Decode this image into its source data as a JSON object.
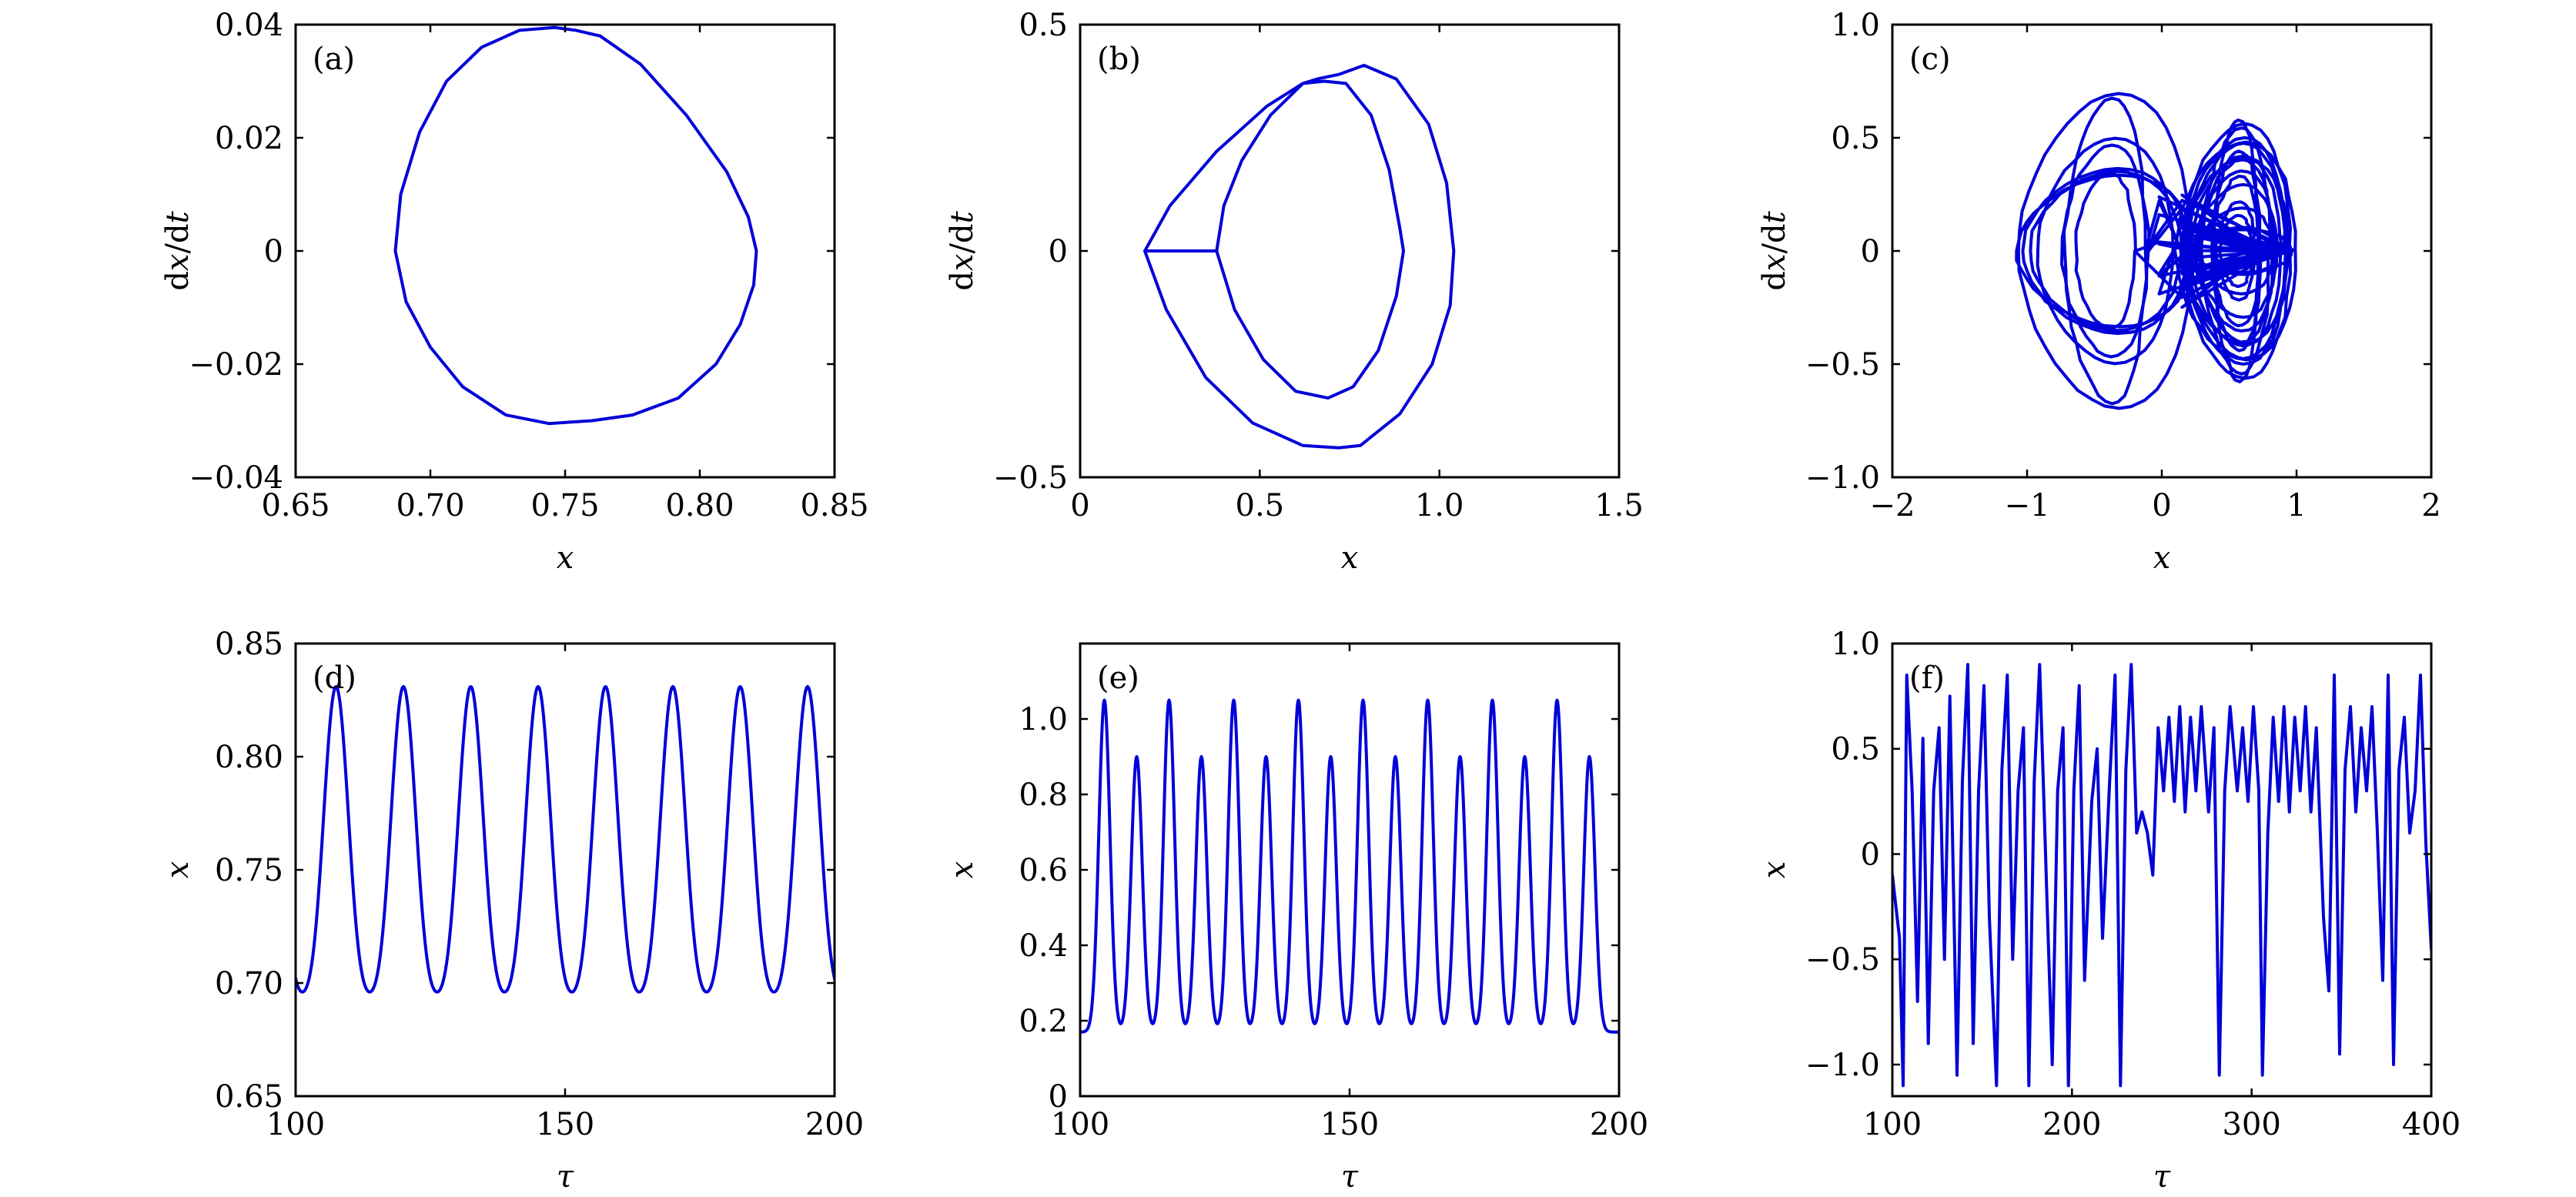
{
  "colors": {
    "series": "#0000d8",
    "axis": "#000000",
    "background": "#ffffff"
  },
  "chart_data": [
    {
      "panel_label": "(a)",
      "type": "line",
      "xlabel": "x",
      "ylabel": "dx/dt",
      "xlim": [
        0.65,
        0.85
      ],
      "ylim": [
        -0.04,
        0.04
      ],
      "xticks": [
        "0.65",
        "0.70",
        "0.75",
        "0.80",
        "0.85"
      ],
      "yticks": [
        "0.04",
        "0.02",
        "0",
        "−0.02",
        "−0.04"
      ],
      "x": [
        0.687,
        0.689,
        0.696,
        0.706,
        0.719,
        0.733,
        0.746,
        0.754,
        0.763,
        0.778,
        0.795,
        0.81,
        0.818,
        0.821,
        0.82,
        0.815,
        0.806,
        0.792,
        0.775,
        0.76,
        0.744,
        0.728,
        0.712,
        0.7,
        0.691,
        0.687
      ],
      "y": [
        0.0,
        0.01,
        0.021,
        0.03,
        0.036,
        0.039,
        0.0395,
        0.039,
        0.038,
        0.033,
        0.024,
        0.014,
        0.006,
        0.0,
        -0.006,
        -0.013,
        -0.02,
        -0.026,
        -0.029,
        -0.03,
        -0.0305,
        -0.029,
        -0.024,
        -0.017,
        -0.009,
        0.0
      ]
    },
    {
      "panel_label": "(b)",
      "type": "line",
      "xlabel": "x",
      "ylabel": "dx/dt",
      "xlim": [
        0,
        1.5
      ],
      "ylim": [
        -0.5,
        0.5
      ],
      "xticks": [
        "0",
        "0.5",
        "1.0",
        "1.5"
      ],
      "yticks": [
        "0.5",
        "0",
        "−0.5"
      ],
      "x": [
        0.18,
        0.25,
        0.38,
        0.52,
        0.62,
        0.66,
        0.72,
        0.79,
        0.88,
        0.97,
        1.02,
        1.04,
        1.03,
        0.98,
        0.89,
        0.78,
        0.72,
        0.62,
        0.48,
        0.35,
        0.24,
        0.18,
        0.38,
        0.4,
        0.45,
        0.53,
        0.62,
        0.68,
        0.74,
        0.81,
        0.86,
        0.89,
        0.9,
        0.88,
        0.83,
        0.76,
        0.69,
        0.6,
        0.51,
        0.43,
        0.38
      ],
      "y": [
        0.0,
        0.1,
        0.22,
        0.32,
        0.37,
        0.38,
        0.39,
        0.41,
        0.38,
        0.28,
        0.15,
        0.0,
        -0.12,
        -0.25,
        -0.36,
        -0.43,
        -0.435,
        -0.43,
        -0.38,
        -0.28,
        -0.13,
        0.0,
        0.0,
        0.1,
        0.2,
        0.3,
        0.37,
        0.375,
        0.37,
        0.3,
        0.18,
        0.05,
        0.0,
        -0.1,
        -0.22,
        -0.3,
        -0.325,
        -0.31,
        -0.24,
        -0.13,
        0.0
      ]
    },
    {
      "panel_label": "(c)",
      "type": "line",
      "xlabel": "x",
      "ylabel": "dx/dt",
      "xlim": [
        -2,
        2
      ],
      "ylim": [
        -1.0,
        1.0
      ],
      "xticks": [
        "−2",
        "−1",
        "0",
        "1",
        "2"
      ],
      "yticks": [
        "1.0",
        "0.5",
        "0",
        "−0.5",
        "−1.0"
      ]
    },
    {
      "panel_label": "(d)",
      "type": "line",
      "xlabel": "τ",
      "ylabel": "x",
      "xlim": [
        100,
        200
      ],
      "ylim": [
        0.65,
        0.85
      ],
      "xticks": [
        "100",
        "150",
        "200"
      ],
      "yticks": [
        "0.85",
        "0.80",
        "0.75",
        "0.70",
        "0.65"
      ],
      "period": 12.5,
      "peak_times": [
        107.5,
        120,
        132.5,
        145,
        157.5,
        170,
        182.5,
        195
      ],
      "peak_value": 0.821,
      "trough_value": 0.686
    },
    {
      "panel_label": "(e)",
      "type": "line",
      "xlabel": "τ",
      "ylabel": "x",
      "xlim": [
        100,
        200
      ],
      "ylim": [
        0,
        1.2
      ],
      "xticks": [
        "100",
        "150",
        "200"
      ],
      "yticks": [
        "1.0",
        "0.8",
        "0.6",
        "0.4",
        "0.2",
        "0"
      ],
      "high_peak_times": [
        104.5,
        116.5,
        128.5,
        140.5,
        152.5,
        164.5,
        176.5,
        188.5
      ],
      "low_peak_times": [
        110.5,
        122.5,
        134.5,
        146.5,
        158.5,
        170.5,
        182.5,
        194.5
      ],
      "high_peak_value": 1.05,
      "low_peak_value": 0.9,
      "trough_value": 0.17
    },
    {
      "panel_label": "(f)",
      "type": "line",
      "xlabel": "τ",
      "ylabel": "x",
      "xlim": [
        100,
        400
      ],
      "ylim": [
        -1.15,
        1.0
      ],
      "xticks": [
        "100",
        "200",
        "300",
        "400"
      ],
      "yticks": [
        "1.0",
        "0.5",
        "0",
        "−0.5",
        "−1.0"
      ],
      "t": [
        100,
        104,
        106,
        108,
        111,
        114,
        117,
        120,
        123,
        126,
        129,
        132,
        136,
        139,
        142,
        145,
        148,
        151,
        154,
        158,
        161,
        164,
        167,
        170,
        173,
        176,
        179,
        182,
        186,
        189,
        192,
        195,
        198,
        201,
        204,
        207,
        211,
        214,
        217,
        221,
        224,
        227,
        230,
        233,
        236,
        239,
        242,
        245,
        248,
        251,
        254,
        257,
        260,
        263,
        266,
        269,
        272,
        276,
        279,
        282,
        285,
        288,
        292,
        295,
        298,
        301,
        304,
        306,
        309,
        312,
        315,
        318,
        321,
        324,
        327,
        330,
        333,
        336,
        340,
        343,
        346,
        349,
        352,
        355,
        358,
        361,
        364,
        367,
        370,
        373,
        376,
        379,
        382,
        385,
        388,
        391,
        394,
        397,
        400
      ],
      "x": [
        -0.1,
        -0.4,
        -1.1,
        0.85,
        0.3,
        -0.7,
        0.55,
        -0.9,
        0.3,
        0.6,
        -0.5,
        0.75,
        -1.05,
        0.35,
        0.9,
        -0.9,
        0.3,
        0.8,
        -0.3,
        -1.1,
        0.4,
        0.85,
        -0.5,
        0.3,
        0.6,
        -1.1,
        0.35,
        0.9,
        -0.2,
        -1.0,
        0.3,
        0.6,
        -1.1,
        0.3,
        0.8,
        -0.6,
        0.25,
        0.5,
        -0.4,
        0.35,
        0.85,
        -1.1,
        0.4,
        0.9,
        0.1,
        0.2,
        0.1,
        -0.1,
        0.6,
        0.3,
        0.65,
        0.25,
        0.7,
        0.2,
        0.65,
        0.3,
        0.7,
        0.2,
        0.6,
        -1.05,
        0.3,
        0.7,
        0.3,
        0.6,
        0.25,
        0.7,
        0.3,
        -1.05,
        0.1,
        0.65,
        0.25,
        0.7,
        0.2,
        0.65,
        0.3,
        0.7,
        0.2,
        0.6,
        -0.3,
        -0.65,
        0.85,
        -0.95,
        0.4,
        0.7,
        0.2,
        0.6,
        0.3,
        0.7,
        0.1,
        -0.6,
        0.85,
        -1.0,
        0.4,
        0.65,
        0.1,
        0.3,
        0.85,
        0.05,
        -0.45
      ]
    }
  ]
}
